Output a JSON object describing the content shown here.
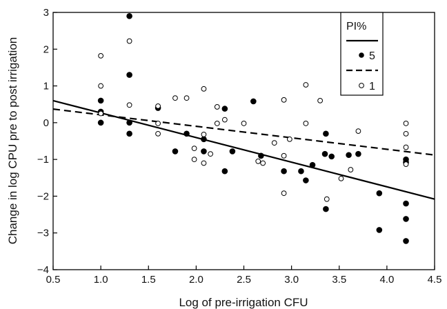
{
  "chart_data": {
    "type": "scatter",
    "xlabel": "Log of pre-irrigation CFU",
    "ylabel": "Change in log CPU pre to post irrigation",
    "xlim": [
      0.5,
      4.5
    ],
    "ylim": [
      -4,
      3
    ],
    "xticks": [
      "0.5",
      "1.0",
      "1.5",
      "2.0",
      "2.5",
      "3.0",
      "3.5",
      "4.0",
      "4.5"
    ],
    "yticks": [
      "−4",
      "−3",
      "−2",
      "−1",
      "0",
      "1",
      "2",
      "3"
    ],
    "legend": {
      "title": "PI%",
      "placement": "top-right",
      "entries": [
        "5",
        "1"
      ]
    },
    "series": [
      {
        "name": "5",
        "marker": "filled-circle",
        "line_style": "solid",
        "color": "#000000",
        "points": [
          [
            1.0,
            0.6
          ],
          [
            1.0,
            0.3
          ],
          [
            1.0,
            0.0
          ],
          [
            1.3,
            2.9
          ],
          [
            1.3,
            1.3
          ],
          [
            1.3,
            0.0
          ],
          [
            1.3,
            -0.3
          ],
          [
            1.6,
            0.4
          ],
          [
            1.78,
            -0.78
          ],
          [
            1.9,
            -0.3
          ],
          [
            2.08,
            -0.45
          ],
          [
            2.08,
            -0.78
          ],
          [
            2.3,
            0.38
          ],
          [
            2.3,
            -1.32
          ],
          [
            2.38,
            -0.78
          ],
          [
            2.6,
            0.58
          ],
          [
            2.68,
            -0.9
          ],
          [
            2.92,
            -1.32
          ],
          [
            3.1,
            -1.32
          ],
          [
            3.15,
            -1.57
          ],
          [
            3.22,
            -1.15
          ],
          [
            3.35,
            -0.85
          ],
          [
            3.36,
            -0.3
          ],
          [
            3.36,
            -2.35
          ],
          [
            3.42,
            -0.92
          ],
          [
            3.6,
            -0.88
          ],
          [
            3.7,
            -0.85
          ],
          [
            3.92,
            -1.92
          ],
          [
            3.92,
            -2.92
          ],
          [
            4.2,
            -1.0
          ],
          [
            4.2,
            -1.08
          ],
          [
            4.2,
            -2.2
          ],
          [
            4.2,
            -2.62
          ],
          [
            4.2,
            -3.22
          ]
        ],
        "trend": [
          [
            0.5,
            0.6
          ],
          [
            4.5,
            -2.08
          ]
        ]
      },
      {
        "name": "1",
        "marker": "open-circle",
        "line_style": "dashed",
        "color": "#000000",
        "points": [
          [
            1.0,
            1.82
          ],
          [
            1.0,
            1.0
          ],
          [
            1.0,
            0.25
          ],
          [
            1.3,
            2.22
          ],
          [
            1.3,
            0.48
          ],
          [
            1.6,
            0.45
          ],
          [
            1.6,
            -0.02
          ],
          [
            1.6,
            -0.3
          ],
          [
            1.78,
            0.67
          ],
          [
            1.9,
            0.67
          ],
          [
            1.98,
            -0.7
          ],
          [
            1.98,
            -1.0
          ],
          [
            2.08,
            0.92
          ],
          [
            2.08,
            -0.32
          ],
          [
            2.08,
            -1.1
          ],
          [
            2.15,
            -0.85
          ],
          [
            2.22,
            0.43
          ],
          [
            2.22,
            -0.02
          ],
          [
            2.3,
            0.08
          ],
          [
            2.5,
            -0.02
          ],
          [
            2.65,
            -1.05
          ],
          [
            2.7,
            -1.1
          ],
          [
            2.82,
            -0.55
          ],
          [
            2.92,
            0.62
          ],
          [
            2.92,
            -0.9
          ],
          [
            2.92,
            -1.92
          ],
          [
            2.98,
            -0.45
          ],
          [
            3.15,
            1.03
          ],
          [
            3.15,
            -0.02
          ],
          [
            3.3,
            0.6
          ],
          [
            3.37,
            -2.08
          ],
          [
            3.52,
            -1.52
          ],
          [
            3.62,
            -1.28
          ],
          [
            3.7,
            -0.23
          ],
          [
            4.2,
            -0.02
          ],
          [
            4.2,
            -0.3
          ],
          [
            4.2,
            -0.67
          ],
          [
            4.2,
            -1.13
          ]
        ],
        "trend": [
          [
            0.5,
            0.37
          ],
          [
            4.5,
            -0.88
          ]
        ]
      }
    ]
  }
}
